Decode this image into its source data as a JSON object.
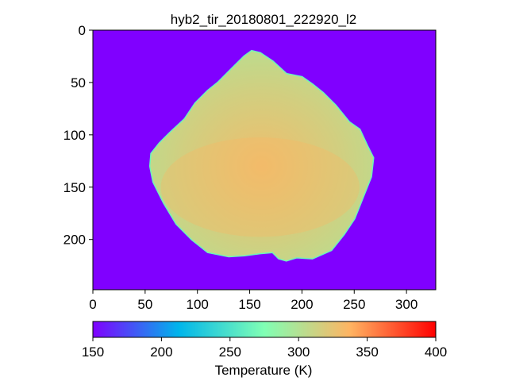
{
  "chart_data": {
    "type": "heatmap",
    "title": "hyb2_tir_20180801_222920_l2",
    "xlabel": "",
    "ylabel": "",
    "xlim": [
      0,
      328
    ],
    "ylim": [
      248,
      0
    ],
    "x_ticks": [
      0,
      50,
      100,
      150,
      200,
      250,
      300
    ],
    "y_ticks": [
      0,
      50,
      100,
      150,
      200
    ],
    "grid": false,
    "background_value": 150,
    "colorbar": {
      "label": "Temperature (K)",
      "range": [
        150,
        400
      ],
      "ticks": [
        150,
        200,
        250,
        300,
        350,
        400
      ],
      "colormap": "rainbow",
      "colors": [
        "#8000ff",
        "#00b5eb",
        "#80ffb4",
        "#ffb462",
        "#ff0000"
      ]
    },
    "object": {
      "name": "asteroid",
      "outline": [
        [
          152,
          20
        ],
        [
          160,
          22
        ],
        [
          172,
          30
        ],
        [
          185,
          42
        ],
        [
          200,
          45
        ],
        [
          210,
          52
        ],
        [
          220,
          60
        ],
        [
          232,
          72
        ],
        [
          245,
          88
        ],
        [
          255,
          95
        ],
        [
          262,
          110
        ],
        [
          268,
          122
        ],
        [
          266,
          140
        ],
        [
          258,
          160
        ],
        [
          250,
          180
        ],
        [
          240,
          195
        ],
        [
          228,
          210
        ],
        [
          210,
          218
        ],
        [
          195,
          217
        ],
        [
          185,
          220
        ],
        [
          178,
          218
        ],
        [
          172,
          212
        ],
        [
          160,
          213
        ],
        [
          145,
          215
        ],
        [
          130,
          216
        ],
        [
          110,
          212
        ],
        [
          95,
          200
        ],
        [
          80,
          185
        ],
        [
          68,
          165
        ],
        [
          58,
          145
        ],
        [
          55,
          130
        ],
        [
          56,
          118
        ],
        [
          64,
          108
        ],
        [
          74,
          98
        ],
        [
          88,
          85
        ],
        [
          98,
          70
        ],
        [
          110,
          58
        ],
        [
          120,
          50
        ],
        [
          135,
          35
        ],
        [
          145,
          25
        ]
      ],
      "edge_temperature": 275,
      "center_temperature": 330,
      "north_temperature": 315
    }
  }
}
